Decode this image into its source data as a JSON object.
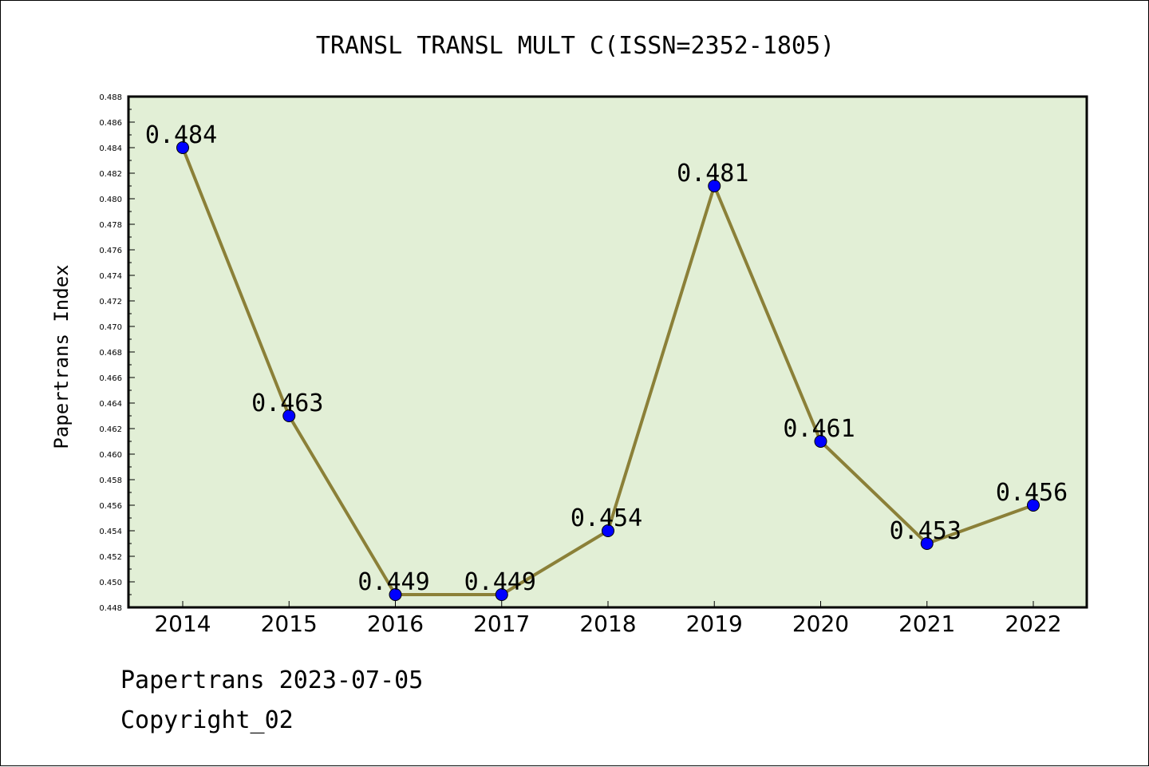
{
  "chart_data": {
    "type": "line",
    "title": "TRANSL TRANSL MULT C(ISSN=2352-1805)",
    "ylabel": "Papertrans Index",
    "xlabel": "",
    "categories": [
      "2014",
      "2015",
      "2016",
      "2017",
      "2018",
      "2019",
      "2020",
      "2021",
      "2022"
    ],
    "series": [
      {
        "values": [
          0.484,
          0.463,
          0.449,
          0.449,
          0.454,
          0.481,
          0.461,
          0.453,
          0.456
        ],
        "data_labels": [
          "0.484",
          "0.463",
          "0.449",
          "0.449",
          "0.454",
          "0.481",
          "0.461",
          "0.453",
          "0.456"
        ],
        "line_color": "#8b8038",
        "marker_color": "#0000ff"
      }
    ],
    "ylim": [
      0.448,
      0.488
    ],
    "yticks": [
      "0.448",
      "0.450",
      "0.452",
      "0.454",
      "0.456",
      "0.458",
      "0.460",
      "0.462",
      "0.464",
      "0.466",
      "0.468",
      "0.470",
      "0.472",
      "0.474",
      "0.476",
      "0.478",
      "0.480",
      "0.482",
      "0.484",
      "0.486",
      "0.488"
    ],
    "plot_background": "#e2efd6",
    "grid": false,
    "legend": "none"
  },
  "footer": {
    "line1": "Papertrans 2023-07-05",
    "line2": "Copyright_02"
  }
}
